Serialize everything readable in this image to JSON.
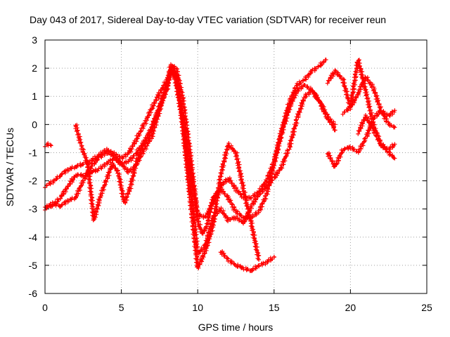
{
  "chart_data": {
    "type": "scatter",
    "title": "Day 043 of 2017, Sidereal Day-to-day VTEC variation (SDTVAR) for receiver reun",
    "xlabel": "GPS time / hours",
    "ylabel": "SDTVAR / TECUs",
    "xlim": [
      0,
      25
    ],
    "ylim": [
      -6,
      3
    ],
    "xticks": [
      "0",
      "5",
      "10",
      "15",
      "20",
      "25"
    ],
    "yticks": [
      "-6",
      "-5",
      "-4",
      "-3",
      "-2",
      "-1",
      "0",
      "1",
      "2",
      "3"
    ],
    "grid": true,
    "marker": "plus",
    "color": "#ff0000",
    "series": [
      {
        "x": [
          0.0,
          0.6,
          1.0,
          1.5,
          2.0,
          2.5,
          3.0,
          3.5,
          4.0,
          4.5,
          5.0,
          5.5,
          6.0,
          6.5,
          7.0,
          7.5,
          8.0,
          8.3,
          8.6,
          9.0,
          9.5,
          10.0,
          10.5,
          11.0,
          11.5,
          12.0,
          12.5,
          13.0,
          13.5,
          14.0,
          14.5,
          15.0,
          15.5,
          16.0,
          16.5,
          17.0,
          17.5,
          18.0,
          18.4
        ],
        "y": [
          -2.2,
          -2.0,
          -1.8,
          -1.6,
          -1.5,
          -1.4,
          -1.3,
          -1.1,
          -0.9,
          -1.0,
          -1.2,
          -1.0,
          -0.5,
          0.0,
          0.6,
          1.1,
          1.6,
          1.9,
          1.6,
          0.3,
          -1.5,
          -3.2,
          -3.3,
          -2.8,
          -2.2,
          -1.9,
          -2.3,
          -2.6,
          -2.6,
          -2.4,
          -2.0,
          -1.3,
          -0.2,
          0.8,
          1.4,
          1.6,
          1.9,
          2.1,
          2.3
        ]
      },
      {
        "x": [
          0.0,
          0.5,
          1.0,
          1.5,
          2.0,
          2.5,
          3.0,
          3.5,
          4.0,
          4.5,
          5.0,
          5.5,
          6.0,
          6.5,
          7.0,
          7.5,
          8.0,
          8.3,
          8.6,
          9.0,
          9.5,
          10.0,
          10.3,
          10.6,
          11.0,
          11.5,
          12.0,
          12.5,
          13.0,
          13.5,
          14.0,
          14.5,
          15.0,
          15.5,
          16.0,
          16.5,
          17.0,
          17.5,
          18.0,
          18.5,
          19.0
        ],
        "y": [
          -3.0,
          -2.8,
          -2.9,
          -2.7,
          -2.6,
          -2.0,
          -1.5,
          -1.2,
          -1.0,
          -1.1,
          -1.4,
          -1.3,
          -1.0,
          -0.6,
          -0.1,
          0.6,
          1.3,
          2.1,
          2.0,
          1.0,
          -1.0,
          -3.4,
          -3.9,
          -3.6,
          -2.6,
          -2.3,
          -2.6,
          -3.1,
          -3.3,
          -3.3,
          -3.1,
          -2.5,
          -1.4,
          -0.3,
          0.6,
          1.2,
          1.4,
          1.2,
          0.8,
          0.3,
          -0.2
        ]
      },
      {
        "x": [
          0.0,
          0.5,
          1.0,
          1.5,
          2.0,
          2.5,
          3.0,
          3.5,
          4.0,
          4.5,
          5.0,
          5.5,
          6.0,
          6.5,
          7.0,
          7.5,
          8.0,
          8.2,
          8.5,
          9.0,
          9.5,
          10.0,
          10.5,
          11.0,
          11.5,
          12.0,
          12.5,
          13.0,
          13.5,
          14.0,
          14.5,
          15.0,
          15.5,
          16.0,
          16.5,
          17.0,
          17.5,
          18.0,
          18.5,
          19.0
        ],
        "y": [
          -2.9,
          -2.9,
          -2.6,
          -2.2,
          -1.8,
          -1.8,
          -1.7,
          -1.6,
          -1.4,
          -1.2,
          -1.4,
          -1.7,
          -1.4,
          -0.9,
          -0.4,
          0.5,
          1.4,
          2.0,
          1.7,
          0.2,
          -2.0,
          -4.6,
          -4.3,
          -3.3,
          -3.0,
          -3.4,
          -3.3,
          -3.5,
          -2.9,
          -2.5,
          -2.2,
          -1.9,
          -1.5,
          -0.8,
          0.2,
          1.0,
          1.2,
          0.8,
          0.2,
          0.0
        ]
      },
      {
        "x": [
          2.0,
          2.4,
          2.8,
          3.2,
          3.6,
          4.0,
          4.4,
          4.8,
          5.2,
          5.6,
          6.0,
          6.4,
          6.8,
          7.2,
          7.6,
          8.0,
          8.3,
          8.6,
          9.0,
          9.5,
          10.0,
          10.5,
          11.0,
          11.5,
          12.0,
          12.5,
          13.0,
          13.5,
          14.0
        ],
        "y": [
          0.0,
          -0.8,
          -1.4,
          -3.4,
          -2.6,
          -2.0,
          -1.4,
          -1.7,
          -2.8,
          -2.2,
          -1.3,
          -0.8,
          -0.4,
          0.2,
          0.8,
          1.4,
          2.1,
          1.8,
          0.0,
          -2.6,
          -5.1,
          -4.5,
          -3.6,
          -1.8,
          -0.7,
          -1.0,
          -2.3,
          -3.5,
          -4.8
        ]
      },
      {
        "x": [
          11.5,
          12.0,
          12.5,
          13.0,
          13.5,
          14.0,
          14.5,
          15.0
        ],
        "y": [
          -4.5,
          -4.8,
          -5.0,
          -5.1,
          -5.2,
          -5.0,
          -4.9,
          -4.7
        ]
      },
      {
        "x": [
          0.0,
          0.2,
          0.4
        ],
        "y": [
          -0.75,
          -0.7,
          -0.75
        ]
      },
      {
        "x": [
          18.5,
          19.0,
          19.5,
          20.0,
          20.5,
          21.0,
          21.5,
          22.0,
          22.5,
          22.9
        ],
        "y": [
          1.5,
          1.9,
          1.6,
          0.6,
          1.1,
          1.7,
          1.3,
          0.5,
          0.0,
          -0.1
        ]
      },
      {
        "x": [
          18.5,
          19.0,
          19.5,
          20.0,
          20.5,
          21.0,
          21.5,
          22.0,
          22.5,
          22.9
        ],
        "y": [
          -1.0,
          -1.5,
          -0.9,
          -0.8,
          -1.0,
          -0.5,
          0.2,
          0.5,
          0.3,
          0.5
        ]
      },
      {
        "x": [
          19.5,
          20.0,
          20.5,
          21.0,
          21.5,
          22.0,
          22.5,
          22.9
        ],
        "y": [
          0.4,
          0.6,
          2.3,
          1.2,
          0.0,
          -0.7,
          -0.9,
          -0.7
        ]
      },
      {
        "x": [
          20.5,
          21.0,
          21.5,
          22.0,
          22.5,
          22.9
        ],
        "y": [
          -0.3,
          0.3,
          -0.2,
          -0.7,
          -1.0,
          -1.2
        ]
      }
    ]
  }
}
